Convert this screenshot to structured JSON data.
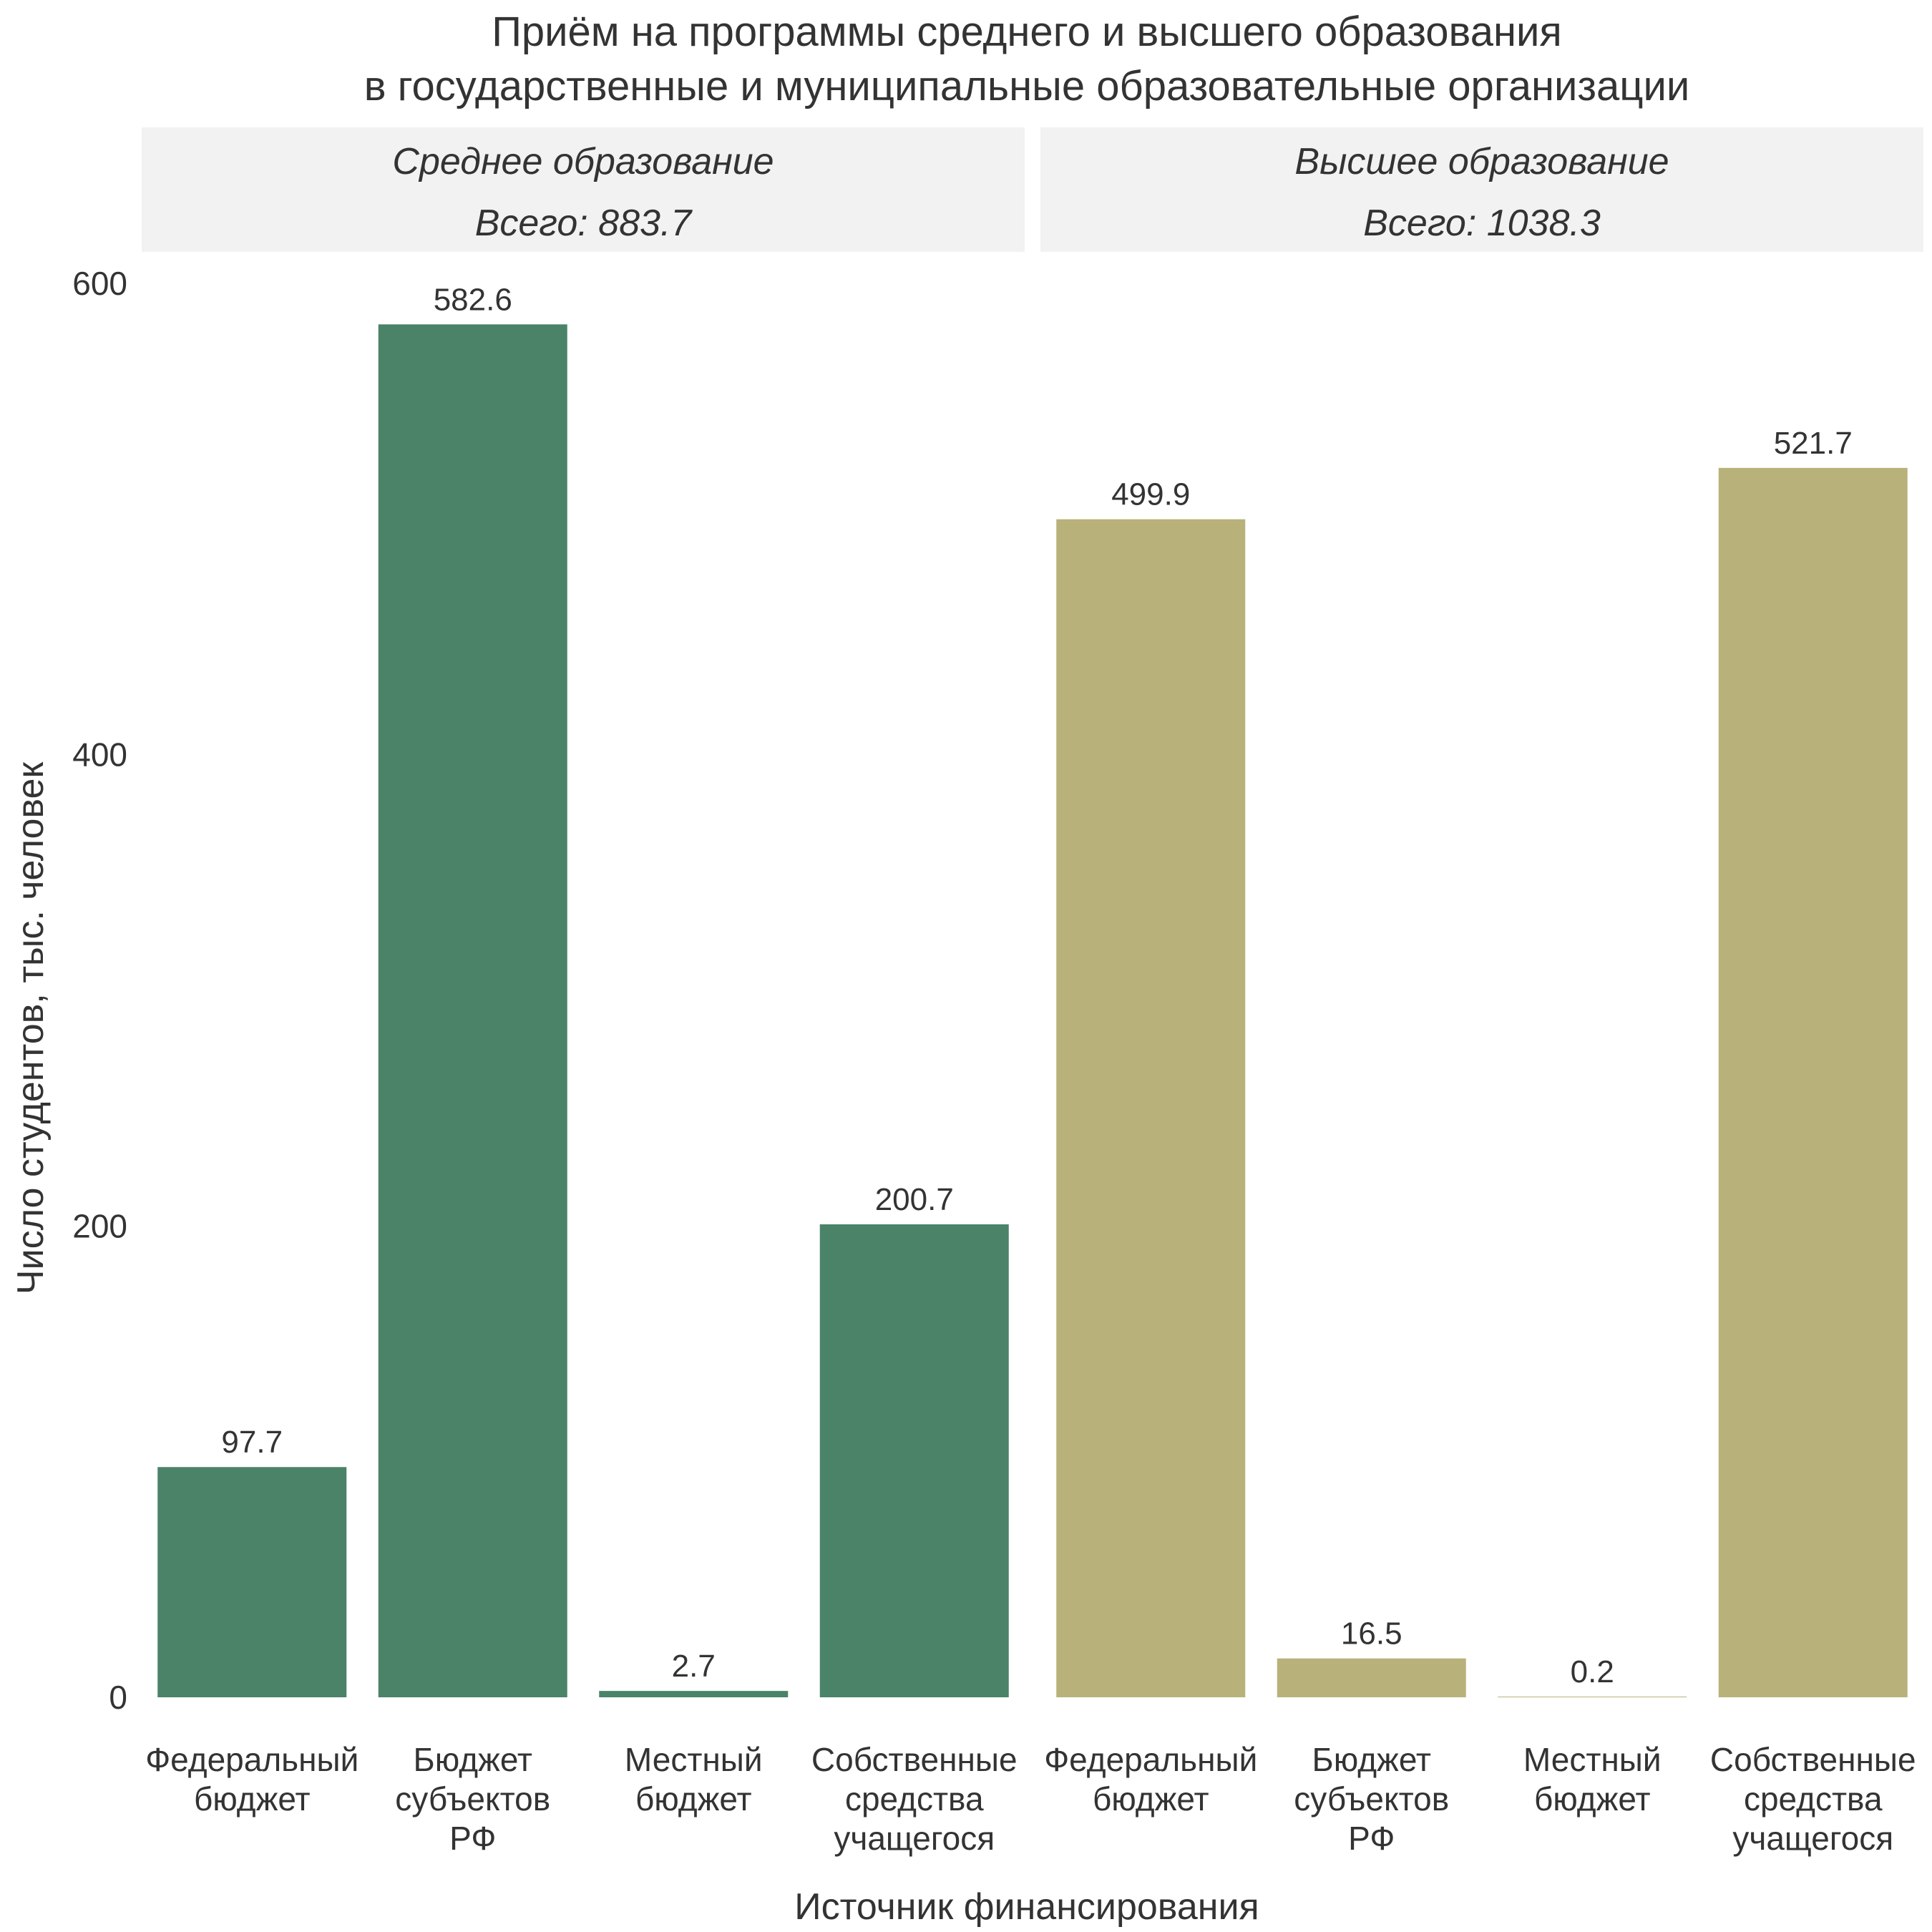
{
  "chart_data": {
    "type": "bar",
    "title": [
      "Приём на программы среднего и высшего образования",
      "в государственные и муниципальные образовательные организации"
    ],
    "xlabel": "Источник финансирования",
    "ylabel": "Число студентов, тыс. человек",
    "ylim": [
      0,
      600
    ],
    "yticks": [
      0,
      200,
      400,
      600
    ],
    "grid": false,
    "categories": [
      [
        "Федеральный",
        "бюджет"
      ],
      [
        "Бюджет",
        "субъектов",
        "РФ"
      ],
      [
        "Местный",
        "бюджет"
      ],
      [
        "Собственные",
        "средства",
        "учащегося"
      ]
    ],
    "panels": [
      {
        "strip": [
          "Среднее образование",
          "Всего: 883.7"
        ],
        "color": "#4a8368",
        "values": [
          97.7,
          582.6,
          2.7,
          200.7
        ],
        "labels": [
          "97.7",
          "582.6",
          "2.7",
          "200.7"
        ]
      },
      {
        "strip": [
          "Высшее образование",
          "Всего: 1038.3"
        ],
        "color": "#b8b27a",
        "values": [
          499.9,
          16.5,
          0.2,
          521.7
        ],
        "labels": [
          "499.9",
          "16.5",
          "0.2",
          "521.7"
        ]
      }
    ]
  }
}
